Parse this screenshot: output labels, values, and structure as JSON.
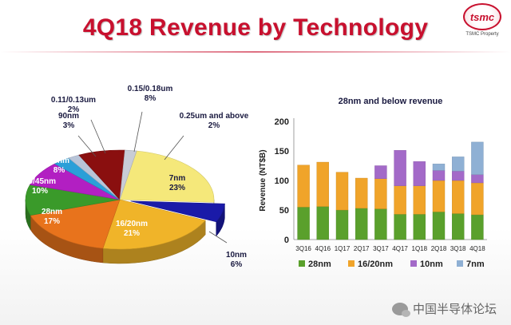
{
  "slide": {
    "title": "4Q18 Revenue by Technology"
  },
  "logo": {
    "mark": "tsmc",
    "caption": "TSMC Property"
  },
  "watermark": "中国半导体论坛",
  "chart_data": [
    {
      "type": "pie",
      "style": "3d-exploded",
      "slices": [
        {
          "label": "7nm",
          "value": 23,
          "display": "23%",
          "color": "#f5e87a"
        },
        {
          "label": "10nm",
          "value": 6,
          "display": "6%",
          "color": "#1a1aa8"
        },
        {
          "label": "16/20nm",
          "value": 21,
          "display": "21%",
          "color": "#f0b429"
        },
        {
          "label": "28nm",
          "value": 17,
          "display": "17%",
          "color": "#e8731c"
        },
        {
          "label": "40/45nm",
          "value": 10,
          "display": "10%",
          "color": "#3a9a2a"
        },
        {
          "label": "65nm",
          "value": 8,
          "display": "8%",
          "color": "#b21fc2"
        },
        {
          "label": "90nm",
          "value": 3,
          "display": "3%",
          "color": "#2a9fd8"
        },
        {
          "label": "0.11/0.13um",
          "value": 2,
          "display": "2%",
          "color": "#b8c4d8"
        },
        {
          "label": "0.15/0.18um",
          "value": 8,
          "display": "8%",
          "color": "#8a0f0f"
        },
        {
          "label": "0.25um and above",
          "value": 2,
          "display": "2%",
          "color": "#c8ccd6"
        }
      ]
    },
    {
      "type": "bar",
      "stacked": true,
      "title": "28nm and below revenue",
      "ylabel": "Revenue (NT$B)",
      "ylim": [
        0,
        200
      ],
      "yticks": [
        0,
        50,
        100,
        150,
        200
      ],
      "categories": [
        "3Q16",
        "4Q16",
        "1Q17",
        "2Q17",
        "3Q17",
        "4Q17",
        "1Q18",
        "2Q18",
        "3Q18",
        "4Q18"
      ],
      "series": [
        {
          "name": "28nm",
          "color": "#5aa02c",
          "values": [
            55,
            56,
            50,
            53,
            52,
            43,
            43,
            47,
            44,
            42
          ]
        },
        {
          "name": "16/20nm",
          "color": "#f0a42a",
          "values": [
            71,
            75,
            64,
            51,
            51,
            48,
            48,
            53,
            56,
            54
          ]
        },
        {
          "name": "10nm",
          "color": "#a36ac8",
          "values": [
            0,
            0,
            0,
            0,
            22,
            60,
            41,
            17,
            16,
            14
          ]
        },
        {
          "name": "7nm",
          "color": "#8fb0d4",
          "values": [
            0,
            0,
            0,
            0,
            0,
            0,
            0,
            11,
            24,
            55
          ]
        }
      ],
      "legend": "bottom"
    }
  ]
}
